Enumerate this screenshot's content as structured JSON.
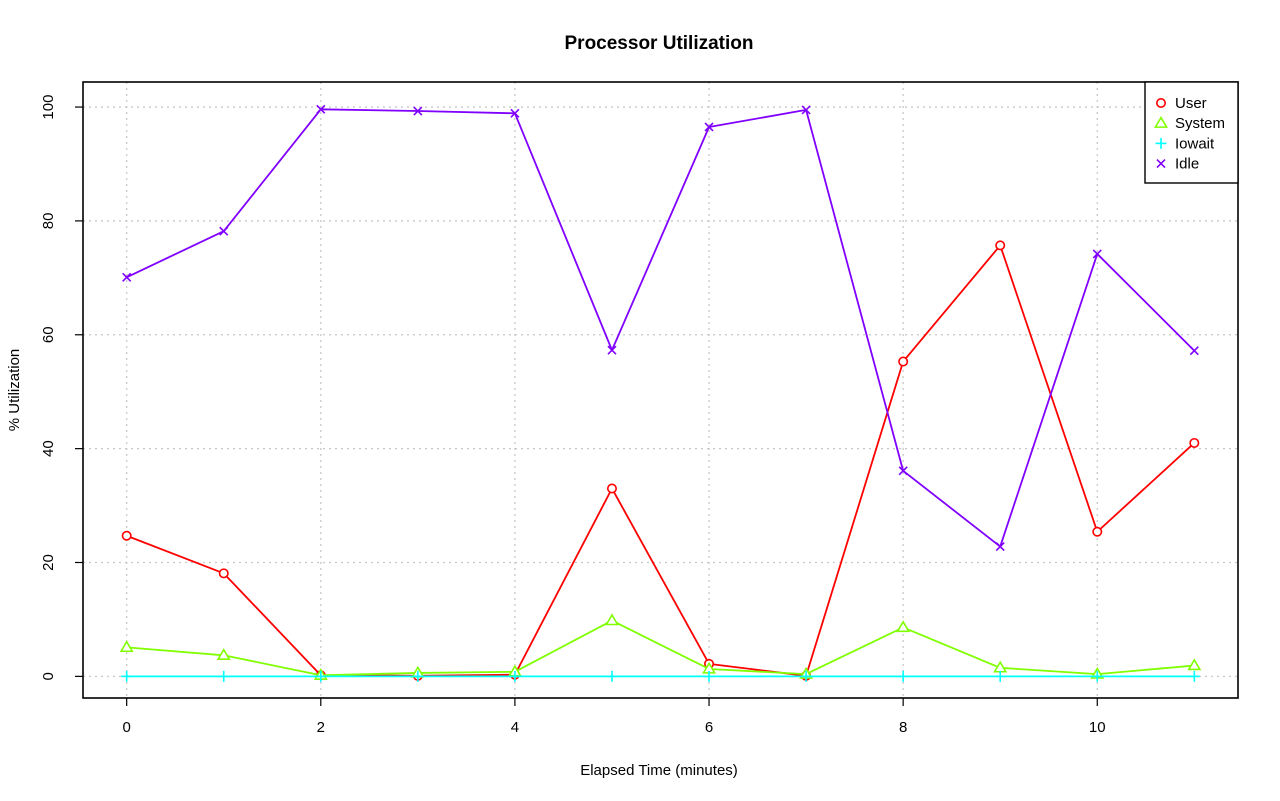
{
  "chart_data": {
    "type": "line",
    "title": "Processor Utilization",
    "xlabel": "Elapsed Time (minutes)",
    "ylabel": "% Utilization",
    "x": [
      0,
      1,
      2,
      3,
      4,
      5,
      6,
      7,
      8,
      9,
      10,
      11
    ],
    "xlim": [
      -0.45,
      11.45
    ],
    "ylim": [
      -3.8,
      104.4
    ],
    "xticks": [
      0,
      2,
      4,
      6,
      8,
      10
    ],
    "yticks": [
      0,
      20,
      40,
      60,
      80,
      100
    ],
    "grid": true,
    "legend_position": "top-right",
    "series": [
      {
        "name": "User",
        "color": "#ff0000",
        "marker": "circle",
        "values": [
          24.7,
          18.1,
          0.2,
          0.1,
          0.3,
          33.0,
          2.2,
          0.1,
          55.3,
          75.7,
          25.4,
          41.0
        ]
      },
      {
        "name": "System",
        "color": "#80ff00",
        "marker": "triangle",
        "values": [
          5.1,
          3.7,
          0.2,
          0.6,
          0.8,
          9.8,
          1.3,
          0.4,
          8.6,
          1.5,
          0.4,
          1.9
        ]
      },
      {
        "name": "Iowait",
        "color": "#00ffff",
        "marker": "plus",
        "values": [
          0,
          0,
          0,
          0,
          0,
          0,
          0,
          0,
          0,
          0,
          0,
          0
        ]
      },
      {
        "name": "Idle",
        "color": "#8000ff",
        "marker": "cross",
        "values": [
          70.1,
          78.2,
          99.6,
          99.3,
          98.9,
          57.3,
          96.5,
          99.5,
          36.1,
          22.8,
          74.2,
          57.2
        ]
      }
    ]
  }
}
